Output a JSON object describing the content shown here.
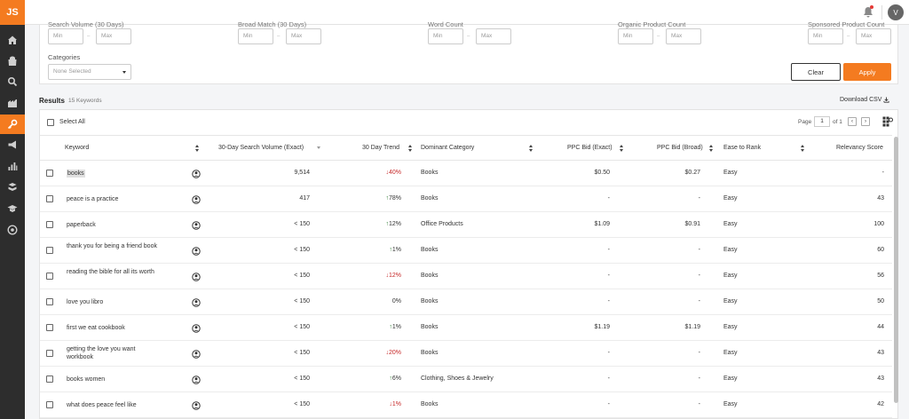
{
  "app": {
    "logo": "JS",
    "user_initial": "V"
  },
  "sidebar": {
    "items": [
      {
        "name": "home-icon"
      },
      {
        "name": "product-database-icon"
      },
      {
        "name": "product-tracker-icon"
      },
      {
        "name": "supplier-icon"
      },
      {
        "name": "keyword-icon",
        "active": true
      },
      {
        "name": "promotions-icon"
      },
      {
        "name": "sales-analytics-icon"
      },
      {
        "name": "inventory-icon"
      },
      {
        "name": "academy-icon"
      },
      {
        "name": "chrome-extension-icon"
      }
    ]
  },
  "filters": {
    "groups": [
      {
        "label": "Search Volume (30 Days)",
        "min_placeholder": "Min",
        "max_placeholder": "Max"
      },
      {
        "label": "Broad Match (30 Days)",
        "min_placeholder": "Min",
        "max_placeholder": "Max"
      },
      {
        "label": "Word Count",
        "min_placeholder": "Min",
        "max_placeholder": "Max"
      },
      {
        "label": "Organic Product Count",
        "min_placeholder": "Min",
        "max_placeholder": "Max"
      },
      {
        "label": "Sponsored Product Count",
        "min_placeholder": "Min",
        "max_placeholder": "Max"
      }
    ],
    "range_separator": "–",
    "categories_label": "Categories",
    "categories_value": "None Selected",
    "clear_label": "Clear",
    "apply_label": "Apply"
  },
  "results": {
    "title": "Results",
    "count": "15 Keywords",
    "download_label": "Download CSV",
    "select_all": "Select All",
    "pager": {
      "page_label": "Page",
      "current": "1",
      "of_label": "of 1",
      "prev": "‹",
      "next": "›"
    }
  },
  "table": {
    "columns": [
      {
        "key": "keyword",
        "label": "Keyword"
      },
      {
        "key": "search_volume",
        "label": "30-Day Search Volume (Exact)"
      },
      {
        "key": "trend",
        "label": "30 Day Trend"
      },
      {
        "key": "category",
        "label": "Dominant Category"
      },
      {
        "key": "ppc_exact",
        "label": "PPC Bid (Exact)"
      },
      {
        "key": "ppc_broad",
        "label": "PPC Bid (Broad)"
      },
      {
        "key": "ease",
        "label": "Ease to Rank"
      },
      {
        "key": "relevancy",
        "label": "Relevancy Score"
      }
    ],
    "rows": [
      {
        "keyword": "books",
        "search_volume": "9,514",
        "trend": "40%",
        "trend_dir": "down",
        "category": "Books",
        "ppc_exact": "$0.50",
        "ppc_broad": "$0.27",
        "ease": "Easy",
        "relevancy": "-"
      },
      {
        "keyword": "peace is a practice",
        "search_volume": "417",
        "trend": "78%",
        "trend_dir": "up",
        "category": "Books",
        "ppc_exact": "-",
        "ppc_broad": "-",
        "ease": "Easy",
        "relevancy": "43"
      },
      {
        "keyword": "paperback",
        "search_volume": "< 150",
        "trend": "12%",
        "trend_dir": "up",
        "category": "Office Products",
        "ppc_exact": "$1.09",
        "ppc_broad": "$0.91",
        "ease": "Easy",
        "relevancy": "100"
      },
      {
        "keyword": "thank you for being a friend book",
        "search_volume": "< 150",
        "trend": "1%",
        "trend_dir": "up",
        "category": "Books",
        "ppc_exact": "-",
        "ppc_broad": "-",
        "ease": "Easy",
        "relevancy": "60"
      },
      {
        "keyword": "reading the bible for all its worth",
        "search_volume": "< 150",
        "trend": "12%",
        "trend_dir": "down",
        "category": "Books",
        "ppc_exact": "-",
        "ppc_broad": "-",
        "ease": "Easy",
        "relevancy": "56"
      },
      {
        "keyword": "love you libro",
        "search_volume": "< 150",
        "trend": "0%",
        "trend_dir": "flat",
        "category": "Books",
        "ppc_exact": "-",
        "ppc_broad": "-",
        "ease": "Easy",
        "relevancy": "50"
      },
      {
        "keyword": "first we eat cookbook",
        "search_volume": "< 150",
        "trend": "1%",
        "trend_dir": "up",
        "category": "Books",
        "ppc_exact": "$1.19",
        "ppc_broad": "$1.19",
        "ease": "Easy",
        "relevancy": "44"
      },
      {
        "keyword": "getting the love you want workbook",
        "search_volume": "< 150",
        "trend": "20%",
        "trend_dir": "down",
        "category": "Books",
        "ppc_exact": "-",
        "ppc_broad": "-",
        "ease": "Easy",
        "relevancy": "43"
      },
      {
        "keyword": "books women",
        "search_volume": "< 150",
        "trend": "6%",
        "trend_dir": "up",
        "category": "Clothing, Shoes & Jewelry",
        "ppc_exact": "-",
        "ppc_broad": "-",
        "ease": "Easy",
        "relevancy": "43"
      },
      {
        "keyword": "what does peace feel like",
        "search_volume": "< 150",
        "trend": "1%",
        "trend_dir": "down",
        "category": "Books",
        "ppc_exact": "-",
        "ppc_broad": "-",
        "ease": "Easy",
        "relevancy": "42"
      }
    ]
  },
  "colors": {
    "accent": "#f47b20",
    "sidebar": "#2d2d2d",
    "trend_up": "#2e7d32",
    "trend_down": "#c62828"
  }
}
